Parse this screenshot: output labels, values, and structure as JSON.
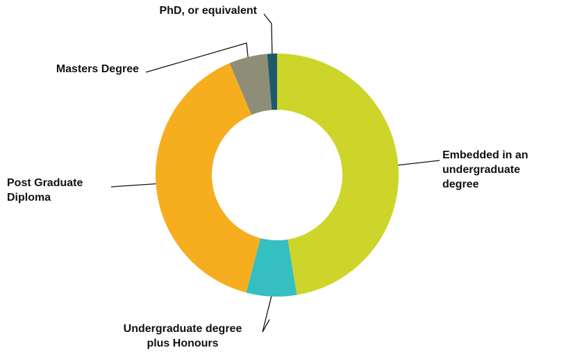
{
  "chart_data": {
    "type": "donut",
    "categories": [
      "Embedded in an undergraduate degree",
      "Undergraduate degree plus Honours",
      "Post Graduate Diploma",
      "Masters Degree",
      "PhD, or equivalent"
    ],
    "values": [
      47.4,
      6.7,
      39.5,
      5.1,
      1.3
    ],
    "colors": [
      "#cdd52a",
      "#35bfc1",
      "#f6ae1f",
      "#8e8e78",
      "#1e5a6e"
    ]
  }
}
